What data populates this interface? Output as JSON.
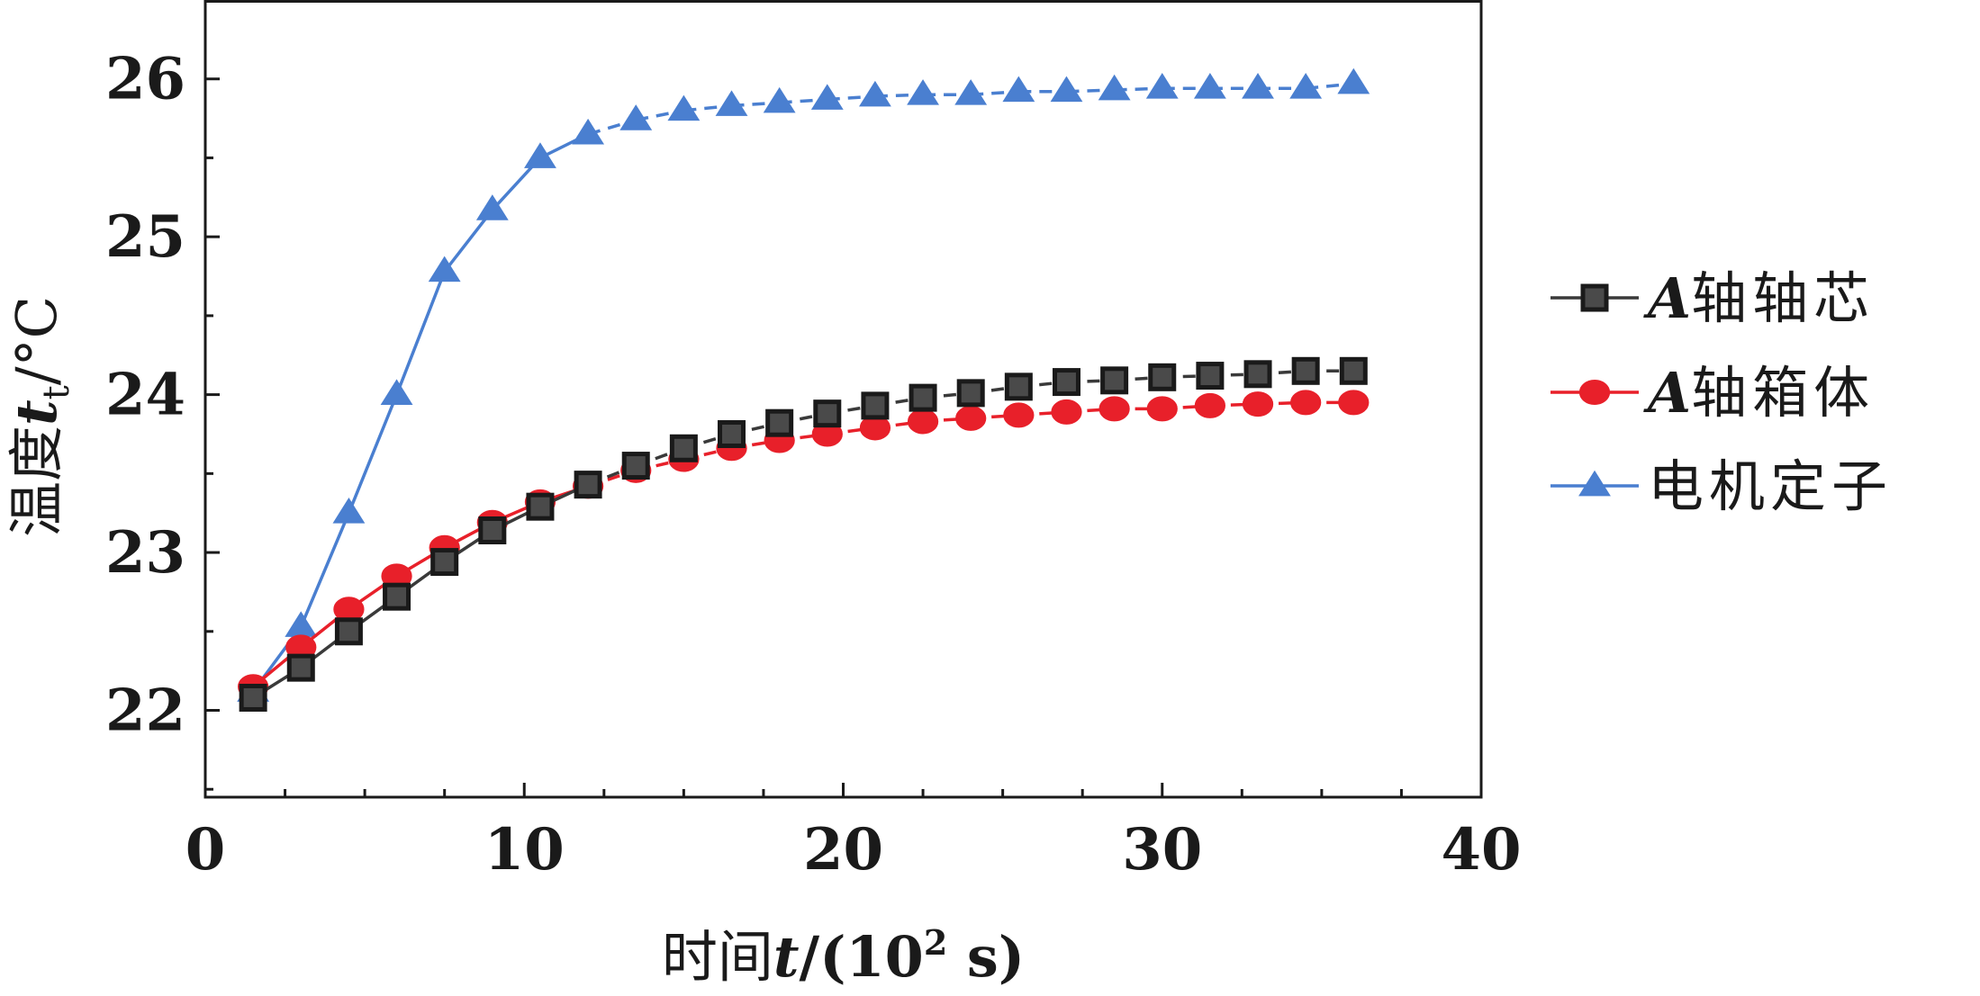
{
  "chart_data": {
    "type": "line",
    "xlabel": {
      "prefix": "时间",
      "var": "t",
      "suffix": "/(10",
      "sup": "2",
      "unit": " s)"
    },
    "ylabel": {
      "prefix": "温度",
      "var": "t",
      "sub": "t",
      "suffix": "/°C"
    },
    "xlim": [
      0,
      40
    ],
    "ylim": [
      21.45,
      26.5
    ],
    "xticks": [
      0,
      10,
      20,
      30,
      40
    ],
    "yticks": [
      22,
      23,
      24,
      25,
      26
    ],
    "grid": false,
    "legend_position": "right",
    "x": [
      1.5,
      3,
      4.5,
      6,
      7.5,
      9,
      10.5,
      12,
      13.5,
      15,
      16.5,
      18,
      19.5,
      21,
      22.5,
      24,
      25.5,
      27,
      28.5,
      30,
      31.5,
      33,
      34.5,
      36
    ],
    "series": [
      {
        "name_var": "A",
        "name_rest": "轴轴芯",
        "color": "#3a3a3a",
        "marker": "square",
        "marker_fill": "#4a4a4a",
        "values": [
          22.08,
          22.27,
          22.5,
          22.72,
          22.94,
          23.14,
          23.29,
          23.43,
          23.55,
          23.66,
          23.75,
          23.82,
          23.88,
          23.93,
          23.98,
          24.01,
          24.05,
          24.08,
          24.09,
          24.11,
          24.12,
          24.13,
          24.15,
          24.15
        ]
      },
      {
        "name_var": "A",
        "name_rest": "轴箱体",
        "color": "#e8202a",
        "marker": "circle",
        "marker_fill": "#e8202a",
        "values": [
          22.15,
          22.4,
          22.64,
          22.85,
          23.03,
          23.19,
          23.32,
          23.42,
          23.52,
          23.59,
          23.66,
          23.71,
          23.75,
          23.79,
          23.83,
          23.85,
          23.87,
          23.89,
          23.91,
          23.91,
          23.93,
          23.94,
          23.95,
          23.95
        ]
      },
      {
        "name_var": "",
        "name_rest": "电机定子",
        "color": "#4a7fd0",
        "marker": "triangle",
        "marker_fill": "#4a7fd0",
        "values": [
          22.12,
          22.53,
          23.25,
          24.0,
          24.78,
          25.17,
          25.5,
          25.65,
          25.74,
          25.8,
          25.83,
          25.85,
          25.87,
          25.89,
          25.9,
          25.9,
          25.92,
          25.92,
          25.93,
          25.94,
          25.94,
          25.94,
          25.94,
          25.97
        ]
      }
    ]
  }
}
